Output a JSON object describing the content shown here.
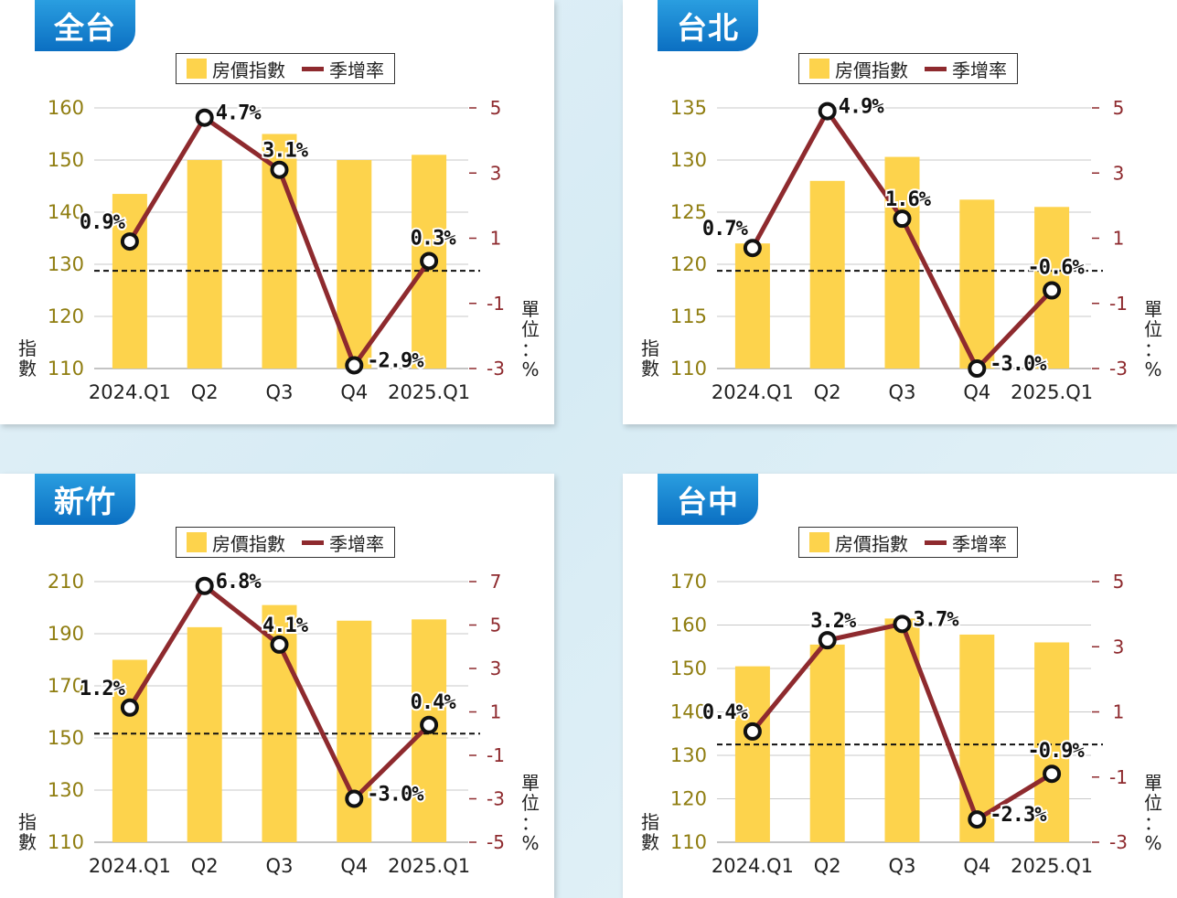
{
  "chart_data": [
    {
      "type": "bar",
      "title": "全台",
      "legend": {
        "bar": "房價指數",
        "line": "季增率"
      },
      "ylabel": "指數",
      "ylabel_right": "單位：%",
      "categories": [
        "2024.Q1",
        "Q2",
        "Q3",
        "Q4",
        "2025.Q1"
      ],
      "series": [
        {
          "name": "房價指數",
          "type": "bar",
          "axis": "left",
          "values": [
            143.5,
            150.0,
            155.0,
            150.0,
            151.0
          ]
        },
        {
          "name": "季增率",
          "type": "line",
          "axis": "right",
          "values": [
            0.9,
            4.7,
            3.1,
            -2.9,
            0.3
          ],
          "labels": [
            "0.9%",
            "4.7%",
            "3.1%",
            "-2.9%",
            "0.3%"
          ]
        }
      ],
      "ylim": [
        110,
        160
      ],
      "yticks": [
        "160",
        "150",
        "140",
        "130",
        "120",
        "110"
      ],
      "ylim_right": [
        -3,
        5
      ],
      "yticks_right": [
        "5",
        "3",
        "1",
        "-1",
        "-3"
      ],
      "zero_line": true,
      "colors": {
        "bar": "#fdd34c",
        "line": "#8e2a2e"
      }
    },
    {
      "type": "bar",
      "title": "台北",
      "legend": {
        "bar": "房價指數",
        "line": "季增率"
      },
      "ylabel": "指數",
      "ylabel_right": "單位：%",
      "categories": [
        "2024.Q1",
        "Q2",
        "Q3",
        "Q4",
        "2025.Q1"
      ],
      "series": [
        {
          "name": "房價指數",
          "type": "bar",
          "axis": "left",
          "values": [
            122.0,
            128.0,
            130.3,
            126.2,
            125.5
          ]
        },
        {
          "name": "季增率",
          "type": "line",
          "axis": "right",
          "values": [
            0.7,
            4.9,
            1.6,
            -3.0,
            -0.6
          ],
          "labels": [
            "0.7%",
            "4.9%",
            "1.6%",
            "-3.0%",
            "-0.6%"
          ]
        }
      ],
      "ylim": [
        110,
        135
      ],
      "yticks": [
        "135",
        "130",
        "125",
        "120",
        "115",
        "110"
      ],
      "ylim_right": [
        -3,
        5
      ],
      "yticks_right": [
        "5",
        "3",
        "1",
        "-1",
        "-3"
      ],
      "zero_line": true,
      "colors": {
        "bar": "#fdd34c",
        "line": "#8e2a2e"
      }
    },
    {
      "type": "bar",
      "title": "新竹",
      "legend": {
        "bar": "房價指數",
        "line": "季增率"
      },
      "ylabel": "指數",
      "ylabel_right": "單位：%",
      "categories": [
        "2024.Q1",
        "Q2",
        "Q3",
        "Q4",
        "2025.Q1"
      ],
      "series": [
        {
          "name": "房價指數",
          "type": "bar",
          "axis": "left",
          "values": [
            180.0,
            192.5,
            201.0,
            195.0,
            195.5
          ]
        },
        {
          "name": "季增率",
          "type": "line",
          "axis": "right",
          "values": [
            1.2,
            6.8,
            4.1,
            -3.0,
            0.4
          ],
          "labels": [
            "1.2%",
            "6.8%",
            "4.1%",
            "-3.0%",
            "0.4%"
          ]
        }
      ],
      "ylim": [
        110,
        210
      ],
      "yticks": [
        "210",
        "190",
        "170",
        "150",
        "130",
        "110"
      ],
      "ylim_right": [
        -5,
        7
      ],
      "yticks_right": [
        "7",
        "5",
        "3",
        "1",
        "-1",
        "-3",
        "-5"
      ],
      "zero_line": true,
      "colors": {
        "bar": "#fdd34c",
        "line": "#8e2a2e"
      }
    },
    {
      "type": "bar",
      "title": "台中",
      "legend": {
        "bar": "房價指數",
        "line": "季增率"
      },
      "ylabel": "指數",
      "ylabel_right": "單位：%",
      "categories": [
        "2024.Q1",
        "Q2",
        "Q3",
        "Q4",
        "2025.Q1"
      ],
      "series": [
        {
          "name": "房價指數",
          "type": "bar",
          "axis": "left",
          "values": [
            150.5,
            155.5,
            161.5,
            157.8,
            156.0
          ]
        },
        {
          "name": "季增率",
          "type": "line",
          "axis": "right",
          "values": [
            0.4,
            3.2,
            3.7,
            -2.3,
            -0.9
          ],
          "labels": [
            "0.4%",
            "3.2%",
            "3.7%",
            "-2.3%",
            "-0.9%"
          ]
        }
      ],
      "ylim": [
        110,
        170
      ],
      "yticks": [
        "170",
        "160",
        "150",
        "140",
        "130",
        "120",
        "110"
      ],
      "ylim_right": [
        -3,
        5
      ],
      "yticks_right": [
        "5",
        "3",
        "1",
        "-1",
        "-3"
      ],
      "zero_line": true,
      "colors": {
        "bar": "#fdd34c",
        "line": "#8e2a2e"
      }
    }
  ]
}
